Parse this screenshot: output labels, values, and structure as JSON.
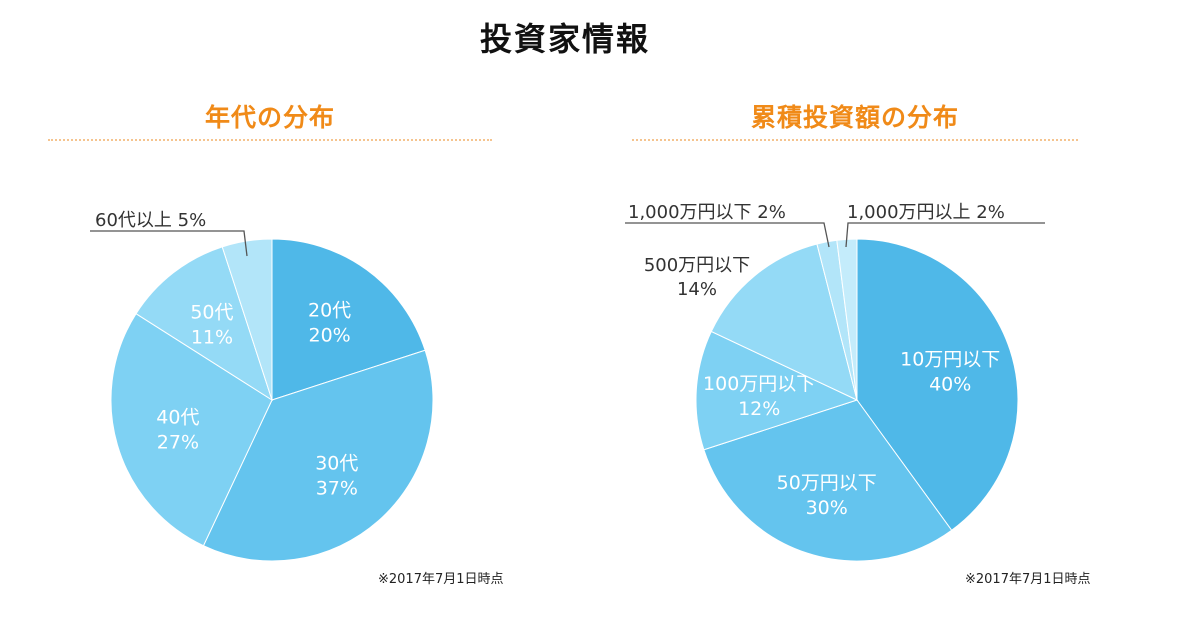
{
  "page": {
    "title": "投資家情報"
  },
  "chart_data": [
    {
      "type": "pie",
      "title": "年代の分布",
      "note": "※2017年7月1日時点",
      "slices": [
        {
          "label": "20代",
          "value": 20,
          "value_label": "20%",
          "color": "#4fb8e8"
        },
        {
          "label": "30代",
          "value": 37,
          "value_label": "37%",
          "color": "#64c4ee"
        },
        {
          "label": "40代",
          "value": 27,
          "value_label": "27%",
          "color": "#7ed1f3"
        },
        {
          "label": "50代",
          "value": 11,
          "value_label": "11%",
          "color": "#94daf6"
        },
        {
          "label": "60代以上",
          "value": 5,
          "value_label": "5%",
          "color": "#b2e5f9"
        }
      ]
    },
    {
      "type": "pie",
      "title": "累積投資額の分布",
      "note": "※2017年7月1日時点",
      "slices": [
        {
          "label": "10万円以下",
          "value": 40,
          "value_label": "40%",
          "color": "#4fb8e8"
        },
        {
          "label": "50万円以下",
          "value": 30,
          "value_label": "30%",
          "color": "#64c4ee"
        },
        {
          "label": "100万円以下",
          "value": 12,
          "value_label": "12%",
          "color": "#7ed1f3"
        },
        {
          "label": "500万円以下",
          "value": 14,
          "value_label": "14%",
          "color": "#94daf6"
        },
        {
          "label": "1,000万円以下",
          "value": 2,
          "value_label": "2%",
          "color": "#b2e5f9"
        },
        {
          "label": "1,000万円以上",
          "value": 2,
          "value_label": "2%",
          "color": "#c4ecfb"
        }
      ]
    }
  ]
}
